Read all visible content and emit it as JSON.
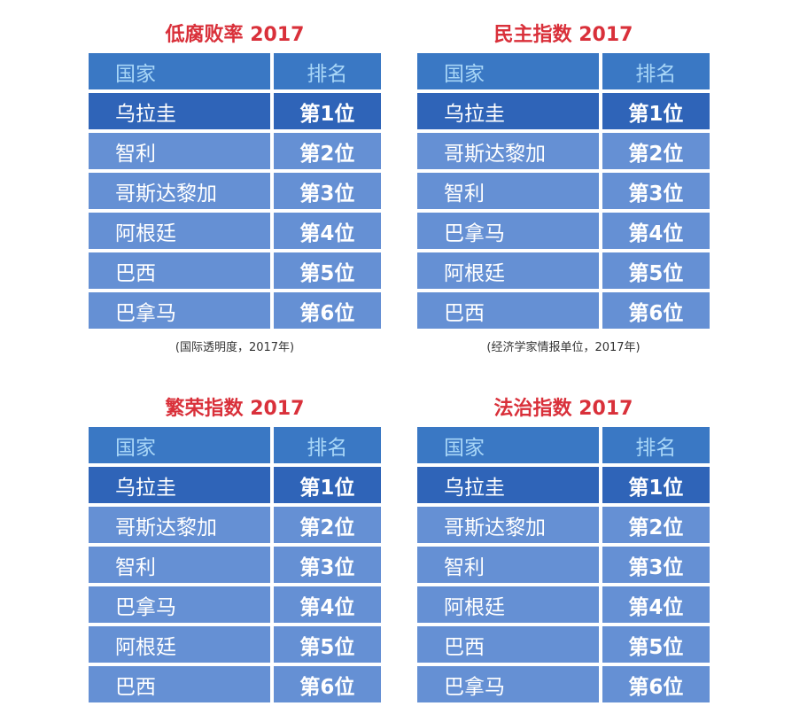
{
  "header": {
    "country": "国家",
    "rank": "排名"
  },
  "tables": [
    {
      "title": "低腐败率 2017",
      "source": "(国际透明度，2017年)",
      "rows": [
        {
          "country": "乌拉圭",
          "rank": "第1位"
        },
        {
          "country": "智利",
          "rank": "第2位"
        },
        {
          "country": "哥斯达黎加",
          "rank": "第3位"
        },
        {
          "country": "阿根廷",
          "rank": "第4位"
        },
        {
          "country": "巴西",
          "rank": "第5位"
        },
        {
          "country": "巴拿马",
          "rank": "第6位"
        }
      ]
    },
    {
      "title": "民主指数 2017",
      "source": "(经济学家情报单位，2017年)",
      "rows": [
        {
          "country": "乌拉圭",
          "rank": "第1位"
        },
        {
          "country": "哥斯达黎加",
          "rank": "第2位"
        },
        {
          "country": "智利",
          "rank": "第3位"
        },
        {
          "country": "巴拿马",
          "rank": "第4位"
        },
        {
          "country": "阿根廷",
          "rank": "第5位"
        },
        {
          "country": "巴西",
          "rank": "第6位"
        }
      ]
    },
    {
      "title": "繁荣指数 2017",
      "source": "",
      "rows": [
        {
          "country": "乌拉圭",
          "rank": "第1位"
        },
        {
          "country": "哥斯达黎加",
          "rank": "第2位"
        },
        {
          "country": "智利",
          "rank": "第3位"
        },
        {
          "country": "巴拿马",
          "rank": "第4位"
        },
        {
          "country": "阿根廷",
          "rank": "第5位"
        },
        {
          "country": "巴西",
          "rank": "第6位"
        }
      ]
    },
    {
      "title": "法治指数 2017",
      "source": "",
      "rows": [
        {
          "country": "乌拉圭",
          "rank": "第1位"
        },
        {
          "country": "哥斯达黎加",
          "rank": "第2位"
        },
        {
          "country": "智利",
          "rank": "第3位"
        },
        {
          "country": "阿根廷",
          "rank": "第4位"
        },
        {
          "country": "巴西",
          "rank": "第5位"
        },
        {
          "country": "巴拿马",
          "rank": "第6位"
        }
      ]
    }
  ],
  "colors": {
    "title": "#d9303a",
    "header_bg": "#3a78c4",
    "header_text": "#a8d6f7",
    "first_row_bg": "#2f64b8",
    "row_bg": "#6590d4"
  }
}
